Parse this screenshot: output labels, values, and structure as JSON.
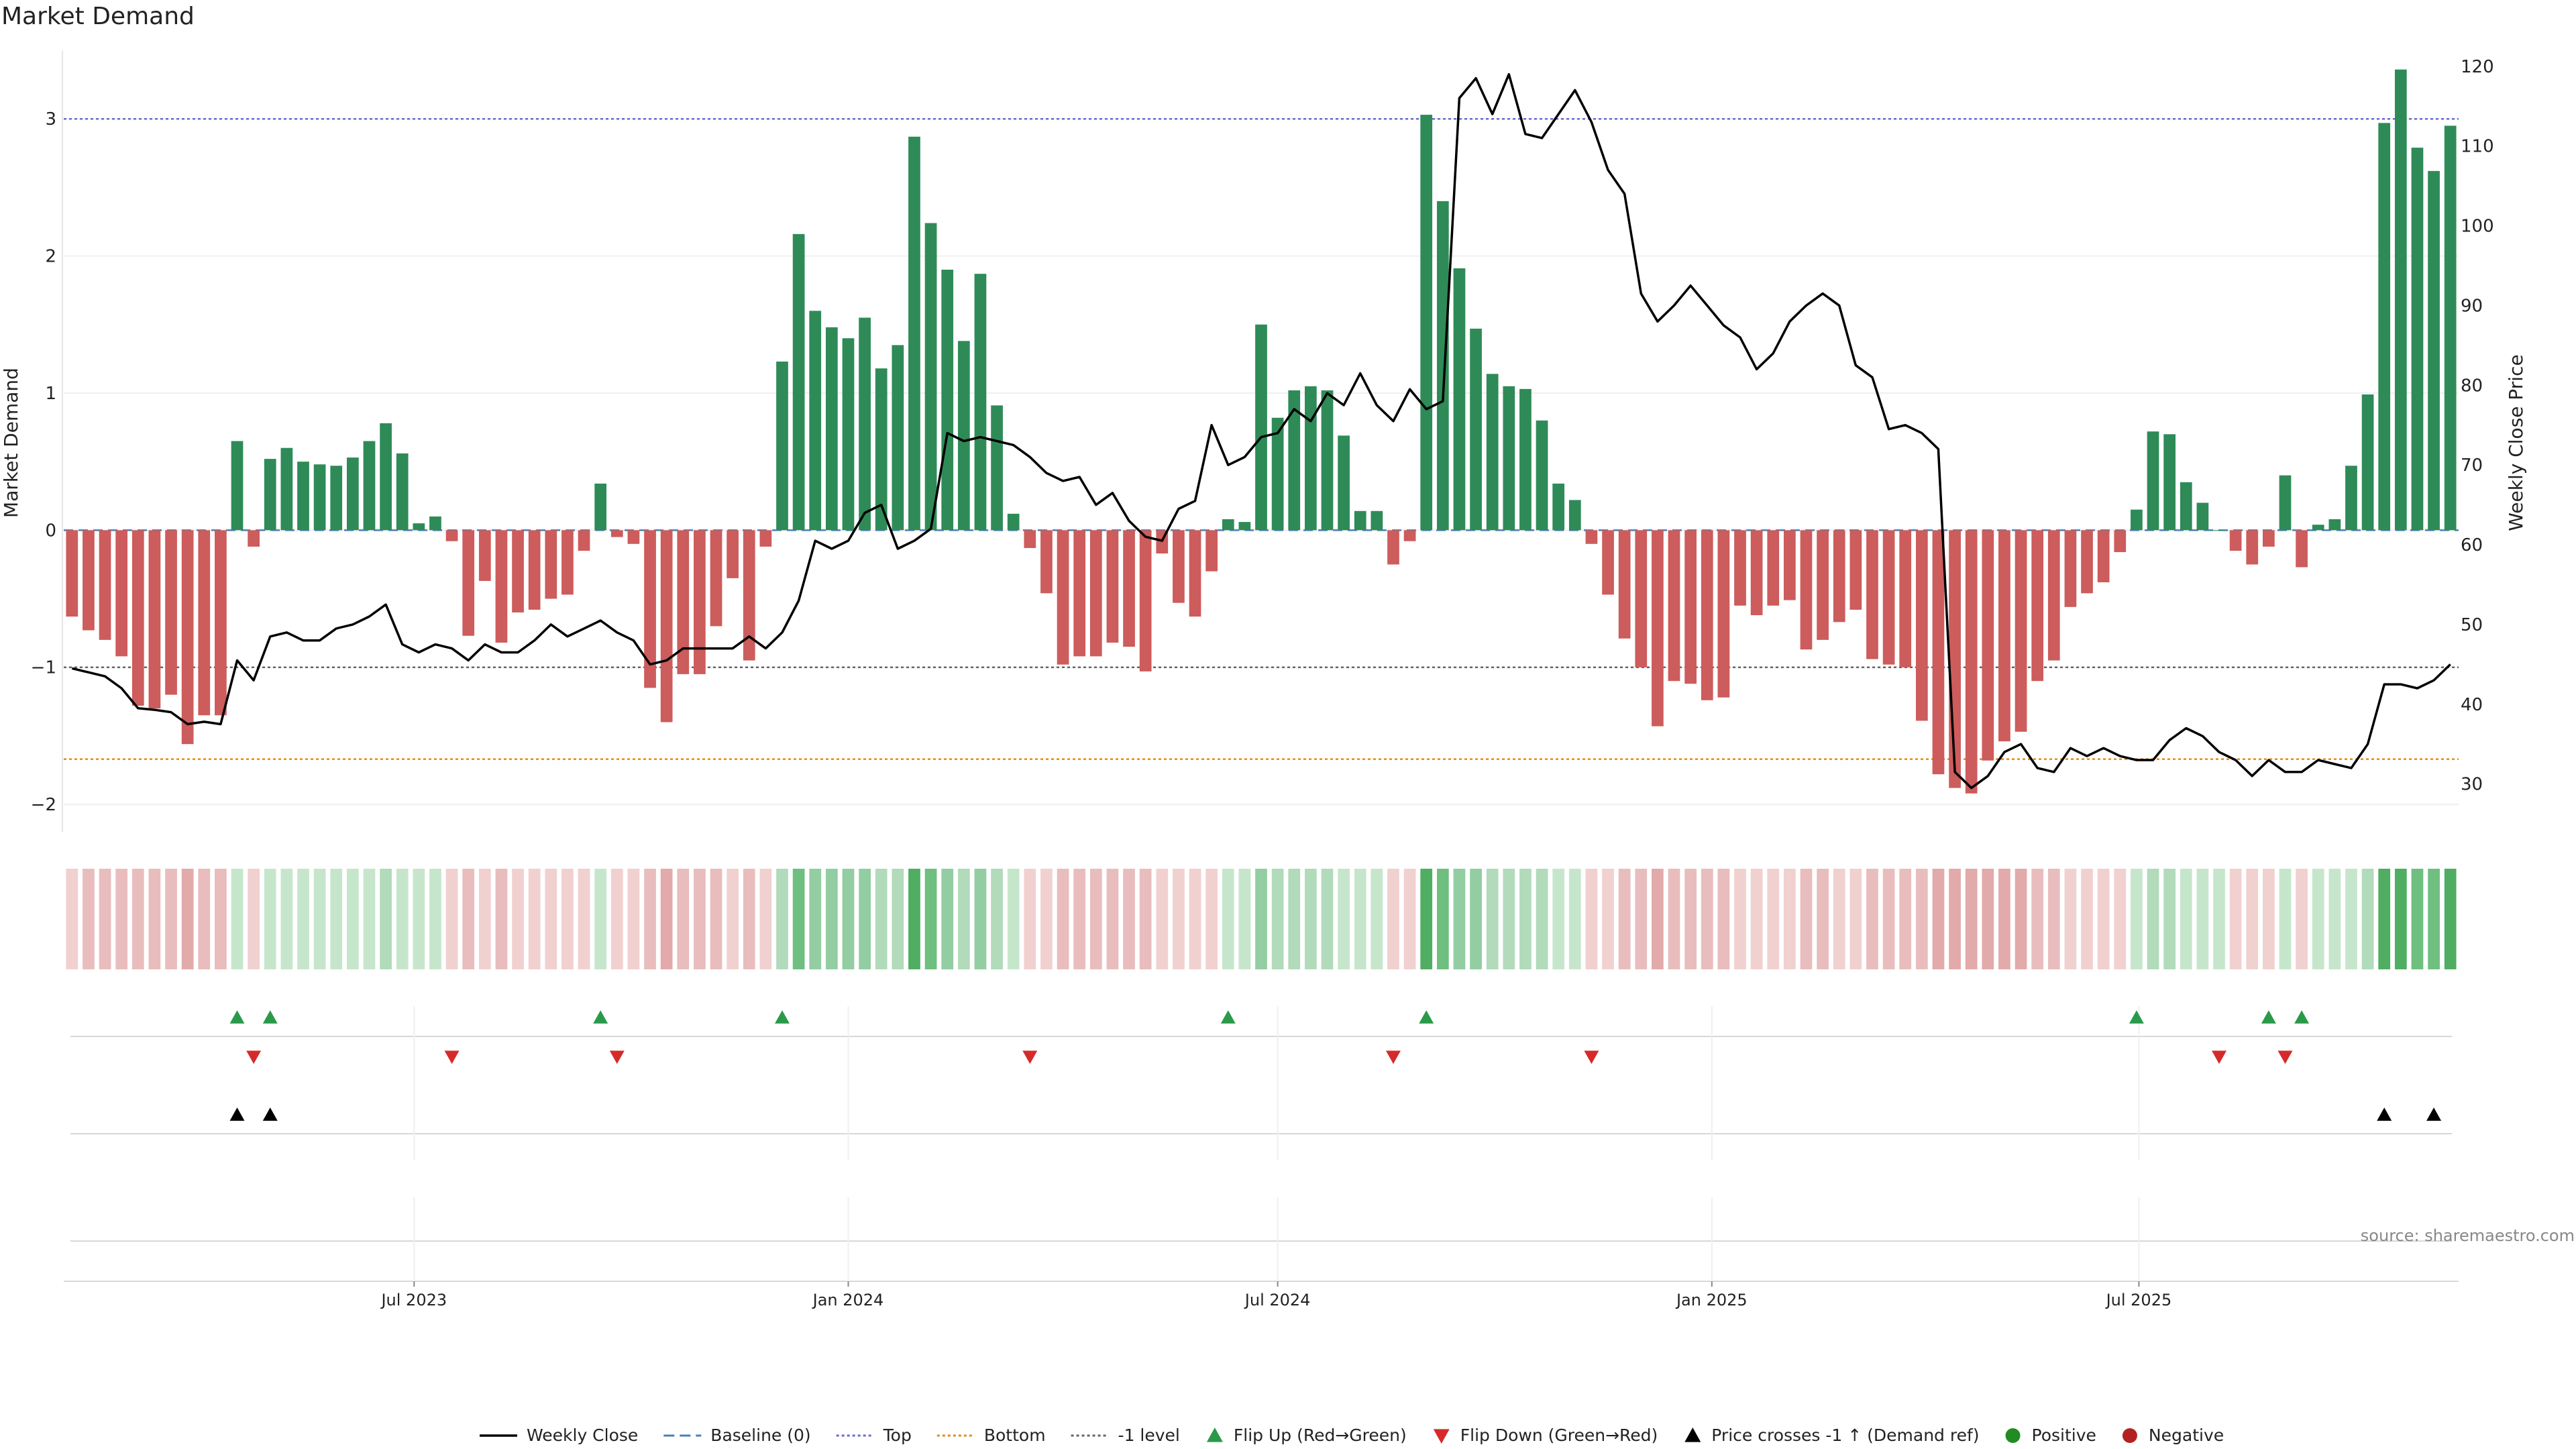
{
  "chart_data": {
    "type": "bar",
    "title": "Market Demand",
    "ylabel": "Market Demand",
    "y2label": "Weekly Close Price",
    "ylim": [
      -2.2,
      3.5
    ],
    "y2lim": [
      24,
      122
    ],
    "yticks": [
      -2,
      -1,
      0,
      1,
      2,
      3
    ],
    "y2ticks": [
      30,
      40,
      50,
      60,
      70,
      80,
      90,
      100,
      110,
      120
    ],
    "ytick_labels": [
      "−2",
      "−1",
      "0",
      "1",
      "2",
      "3"
    ],
    "y2tick_labels": [
      "30",
      "40",
      "50",
      "60",
      "70",
      "80",
      "90",
      "100",
      "110",
      "120"
    ],
    "x_start": "2023-02-06",
    "x_interval": "weekly",
    "x_ticks": [
      "2023-07-01",
      "2024-01-01",
      "2024-07-01",
      "2025-01-01",
      "2025-07-01"
    ],
    "x_tick_labels": [
      "Jul 2023",
      "Jan 2024",
      "Jul 2024",
      "Jan 2025",
      "Jul 2025"
    ],
    "reference_lines": [
      {
        "name": "Top",
        "value": 3,
        "color": "#6a6ad0"
      },
      {
        "name": "Baseline (0)",
        "value": 0,
        "color": "#4a7fb5"
      },
      {
        "name": "-1 level",
        "value": -1,
        "color": "#666666"
      },
      {
        "name": "Bottom",
        "value": -1.67,
        "color": "#e08a1e"
      }
    ],
    "series": [
      {
        "name": "Market Demand",
        "kind": "bar",
        "values": [
          -0.63,
          -0.73,
          -0.8,
          -0.92,
          -1.28,
          -1.3,
          -1.2,
          -1.56,
          -1.35,
          -1.35,
          0.65,
          -0.12,
          0.52,
          0.6,
          0.5,
          0.48,
          0.47,
          0.53,
          0.65,
          0.78,
          0.56,
          0.05,
          0.1,
          -0.08,
          -0.77,
          -0.37,
          -0.82,
          -0.6,
          -0.58,
          -0.5,
          -0.47,
          -0.15,
          0.34,
          -0.05,
          -0.1,
          -1.15,
          -1.4,
          -1.05,
          -1.05,
          -0.7,
          -0.35,
          -0.95,
          -0.12,
          1.23,
          2.16,
          1.6,
          1.48,
          1.4,
          1.55,
          1.18,
          1.35,
          2.87,
          2.24,
          1.9,
          1.38,
          1.87,
          0.91,
          0.12,
          -0.13,
          -0.46,
          -0.98,
          -0.92,
          -0.92,
          -0.82,
          -0.85,
          -1.03,
          -0.17,
          -0.53,
          -0.63,
          -0.3,
          0.08,
          0.06,
          1.5,
          0.82,
          1.02,
          1.05,
          1.02,
          0.69,
          0.14,
          0.14,
          -0.25,
          -0.08,
          3.03,
          2.4,
          1.91,
          1.47,
          1.14,
          1.05,
          1.03,
          0.8,
          0.34,
          0.22,
          -0.1,
          -0.47,
          -0.79,
          -1.0,
          -1.43,
          -1.1,
          -1.12,
          -1.24,
          -1.22,
          -0.55,
          -0.62,
          -0.55,
          -0.51,
          -0.87,
          -0.8,
          -0.67,
          -0.58,
          -0.94,
          -0.98,
          -1.0,
          -1.39,
          -1.78,
          -1.88,
          -1.92,
          -1.68,
          -1.54,
          -1.47,
          -1.1,
          -0.95,
          -0.56,
          -0.46,
          -0.38,
          -0.16,
          0.15,
          0.72,
          0.7,
          0.35,
          0.2,
          0.0,
          -0.15,
          -0.25,
          -0.12,
          0.4,
          -0.27,
          0.04,
          0.08,
          0.47,
          0.99,
          2.97,
          3.36,
          2.79,
          2.62,
          2.95
        ]
      },
      {
        "name": "Weekly Close",
        "kind": "line",
        "color": "#000000",
        "values": [
          44.5,
          44.0,
          43.5,
          42.0,
          39.5,
          39.3,
          39.0,
          37.5,
          37.8,
          37.5,
          45.5,
          43.0,
          48.5,
          49.0,
          48.0,
          48.0,
          49.5,
          50.0,
          51.0,
          52.5,
          47.5,
          46.5,
          47.5,
          47.0,
          45.5,
          47.5,
          46.5,
          46.5,
          48.0,
          50.0,
          48.5,
          49.5,
          50.5,
          49.0,
          48.0,
          45.0,
          45.5,
          47.0,
          47.0,
          47.0,
          47.0,
          48.5,
          47.0,
          49.0,
          53.0,
          60.5,
          59.5,
          60.5,
          64.0,
          65.0,
          59.5,
          60.5,
          62.0,
          74.0,
          73.0,
          73.5,
          73.0,
          72.5,
          71.0,
          69.0,
          68.0,
          68.5,
          65.0,
          66.5,
          63.0,
          61.0,
          60.5,
          64.5,
          65.5,
          75.0,
          70.0,
          71.0,
          73.5,
          74.0,
          77.0,
          75.5,
          79.0,
          77.5,
          81.5,
          77.5,
          75.5,
          79.5,
          77.0,
          78.0,
          116.0,
          118.5,
          114.0,
          119.0,
          111.5,
          111.0,
          114.0,
          117.0,
          113.0,
          107.0,
          104.0,
          91.5,
          88.0,
          90.0,
          92.5,
          90.0,
          87.5,
          86.0,
          82.0,
          84.0,
          88.0,
          90.0,
          91.5,
          90.0,
          82.5,
          81.0,
          74.5,
          75.0,
          74.0,
          72.0,
          31.5,
          29.5,
          31.0,
          34.0,
          35.0,
          32.0,
          31.5,
          34.5,
          33.5,
          34.5,
          33.5,
          33.0,
          33.0,
          35.5,
          37.0,
          36.0,
          34.0,
          33.0,
          31.0,
          33.0,
          31.5,
          31.5,
          33.0,
          32.5,
          32.0,
          35.0,
          42.5,
          42.5,
          42.0,
          43.0,
          45.0
        ]
      }
    ],
    "bar_colors": {
      "positive": "#2e8b57",
      "negative": "#cd5c5c"
    },
    "heat_colors": {
      "pos": [
        "#c6e6cc",
        "#b1dbba",
        "#93cda2",
        "#6fbf80",
        "#4fae62"
      ],
      "neg": [
        "#f1d0d0",
        "#e9bdbd",
        "#e2aaaa",
        "#d99797",
        "#d08585"
      ]
    },
    "flip_up_indices": [
      10,
      12,
      32,
      43,
      70,
      82,
      125,
      133,
      135
    ],
    "flip_down_indices": [
      11,
      23,
      33,
      58,
      80,
      92,
      130,
      134
    ],
    "price_cross_indices": [
      10,
      12,
      140,
      143
    ],
    "legend": [
      {
        "label": "Weekly Close",
        "kind": "line",
        "color": "#000000"
      },
      {
        "label": "Baseline (0)",
        "kind": "dash",
        "color": "#4a7fb5"
      },
      {
        "label": "Top",
        "kind": "dot",
        "color": "#6a6ad0"
      },
      {
        "label": "Bottom",
        "kind": "dot",
        "color": "#e08a1e"
      },
      {
        "label": "-1 level",
        "kind": "dot",
        "color": "#666666"
      },
      {
        "label": "Flip Up (Red→Green)",
        "kind": "tri-up",
        "color": "#2a9a4a"
      },
      {
        "label": "Flip Down (Green→Red)",
        "kind": "tri-down",
        "color": "#d62a2a"
      },
      {
        "label": "Price crosses -1 ↑ (Demand ref)",
        "kind": "tri-up",
        "color": "#000000"
      },
      {
        "label": "Positive",
        "kind": "circle",
        "color": "#228b22"
      },
      {
        "label": "Negative",
        "kind": "circle",
        "color": "#b22222"
      }
    ],
    "source_text": "source: sharemaestro.com"
  }
}
